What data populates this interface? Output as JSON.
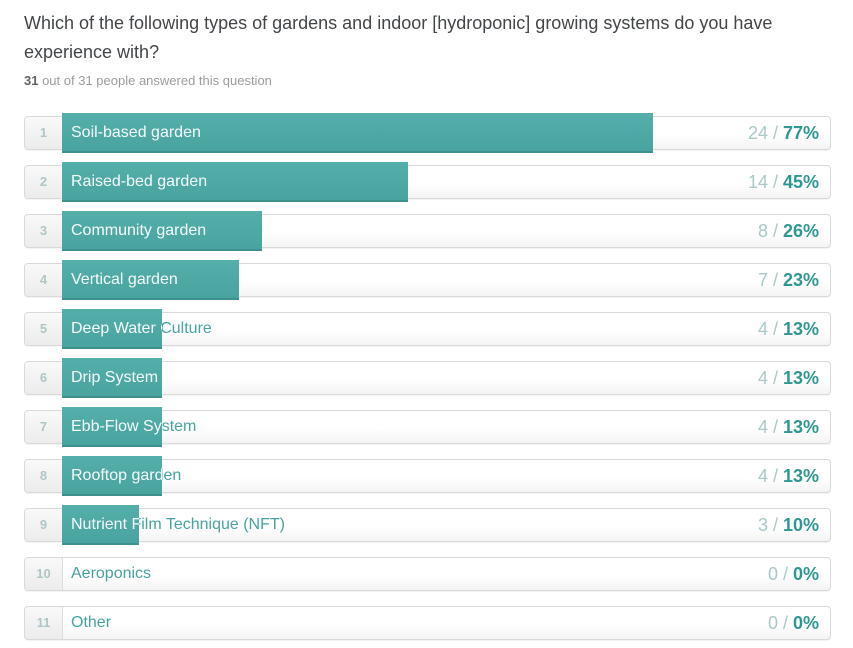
{
  "header": {
    "title": "Which of the following types of gardens and indoor [hydroponic] growing systems do you have experience with?",
    "answered_count": "31",
    "answered_text": " out of 31 people answered this question"
  },
  "ui": {
    "value_separator": " / "
  },
  "colors": {
    "bar_top": "#54aeaa",
    "bar_bottom": "#49a4a0",
    "bar_border": "#3e908c",
    "label_on_bar": "#f5fbfb",
    "label_off_bar": "#46a3a0",
    "count_text": "#a7cac8",
    "percent_text": "#2f9793",
    "rank_text": "#aec6c5"
  },
  "rows": [
    {
      "rank": "1",
      "label": "Soil-based garden",
      "count": "24",
      "percent": "77%",
      "bar_percent": 77
    },
    {
      "rank": "2",
      "label": "Raised-bed garden",
      "count": "14",
      "percent": "45%",
      "bar_percent": 45
    },
    {
      "rank": "3",
      "label": "Community garden",
      "count": "8",
      "percent": "26%",
      "bar_percent": 26
    },
    {
      "rank": "4",
      "label": "Vertical garden",
      "count": "7",
      "percent": "23%",
      "bar_percent": 23
    },
    {
      "rank": "5",
      "label": "Deep Water Culture",
      "count": "4",
      "percent": "13%",
      "bar_percent": 13
    },
    {
      "rank": "6",
      "label": "Drip System",
      "count": "4",
      "percent": "13%",
      "bar_percent": 13
    },
    {
      "rank": "7",
      "label": "Ebb-Flow System",
      "count": "4",
      "percent": "13%",
      "bar_percent": 13
    },
    {
      "rank": "8",
      "label": "Rooftop garden",
      "count": "4",
      "percent": "13%",
      "bar_percent": 13
    },
    {
      "rank": "9",
      "label": "Nutrient Film Technique (NFT)",
      "count": "3",
      "percent": "10%",
      "bar_percent": 10
    },
    {
      "rank": "10",
      "label": "Aeroponics",
      "count": "0",
      "percent": "0%",
      "bar_percent": 0
    },
    {
      "rank": "11",
      "label": "Other",
      "count": "0",
      "percent": "0%",
      "bar_percent": 0
    }
  ],
  "chart_data": {
    "type": "bar",
    "orientation": "horizontal",
    "title": "Which of the following types of gardens and indoor [hydroponic] growing systems do you have experience with?",
    "subtitle": "31 out of 31 people answered this question",
    "total_respondents": 31,
    "categories": [
      "Soil-based garden",
      "Raised-bed garden",
      "Community garden",
      "Vertical garden",
      "Deep Water Culture",
      "Drip System",
      "Ebb-Flow System",
      "Rooftop garden",
      "Nutrient Film Technique (NFT)",
      "Aeroponics",
      "Other"
    ],
    "series": [
      {
        "name": "responses",
        "values": [
          24,
          14,
          8,
          7,
          4,
          4,
          4,
          4,
          3,
          0,
          0
        ]
      },
      {
        "name": "percent_of_respondents",
        "values": [
          77,
          45,
          26,
          23,
          13,
          13,
          13,
          13,
          10,
          0,
          0
        ]
      }
    ],
    "value_axis_range": [
      0,
      100
    ],
    "grid": false,
    "legend": false
  }
}
